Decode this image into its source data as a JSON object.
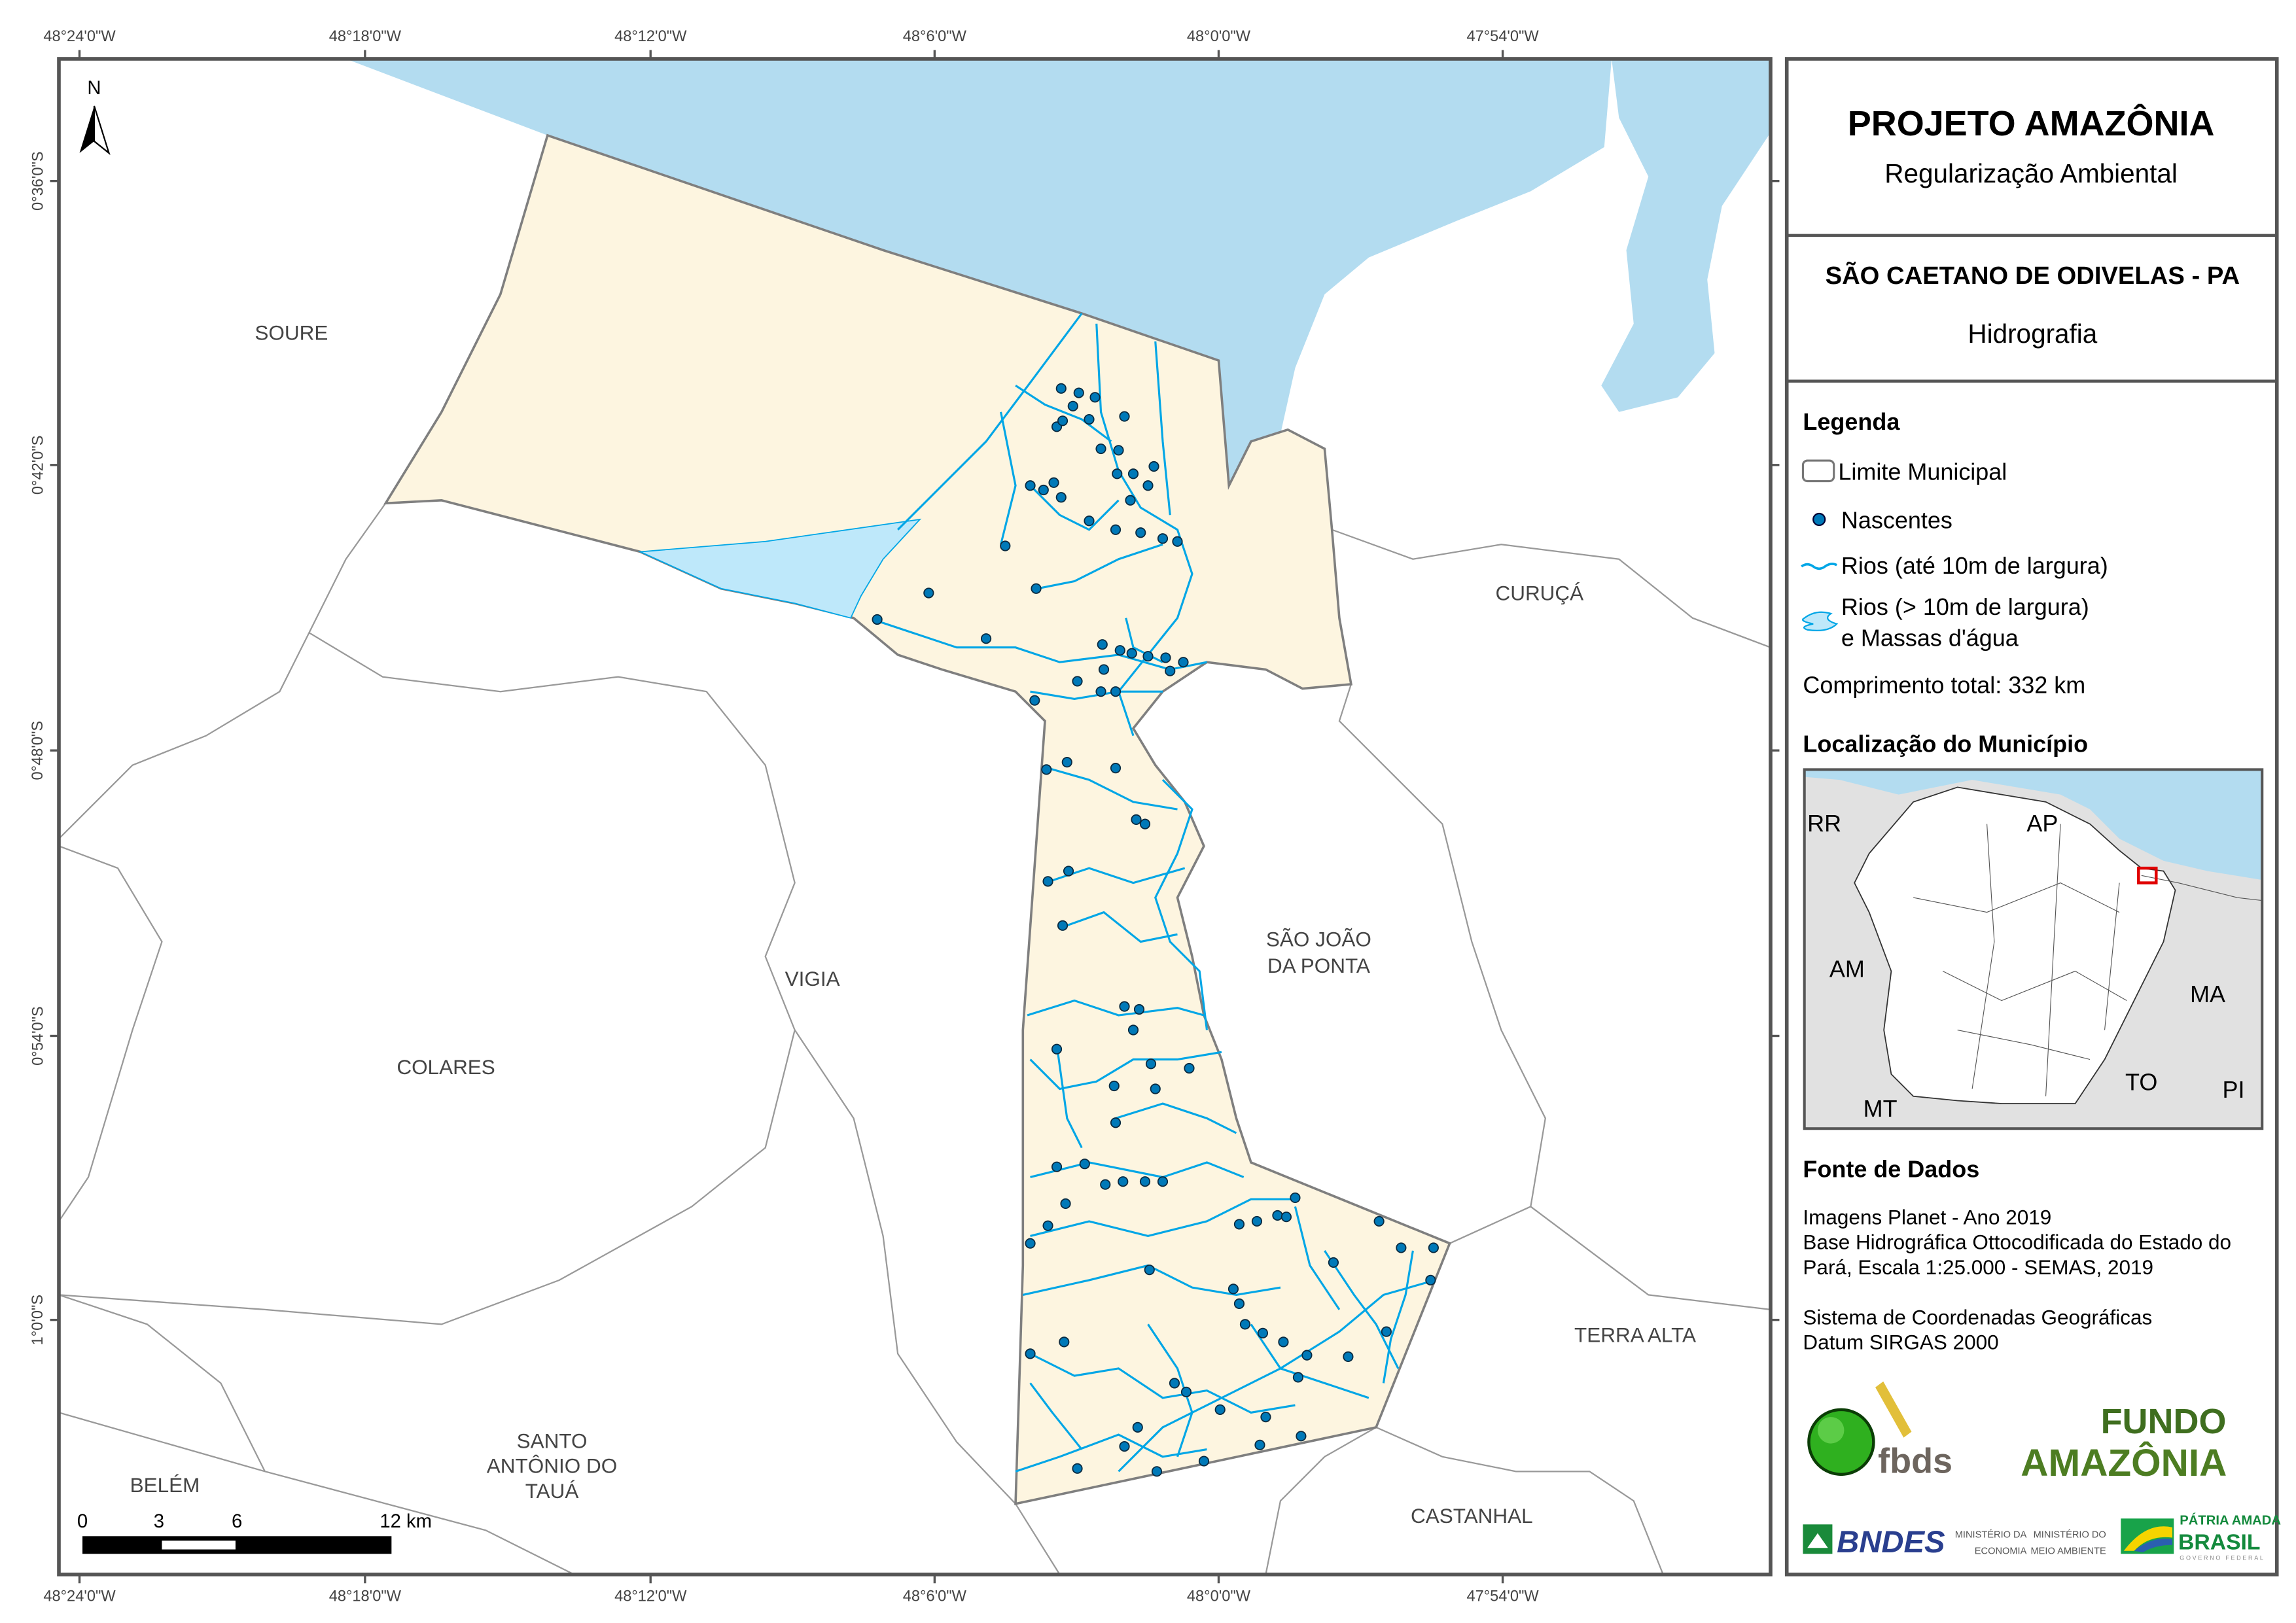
{
  "graticule": {
    "top": [
      "48°24'0\"W",
      "48°18'0\"W",
      "48°12'0\"W",
      "48°6'0\"W",
      "48°0'0\"W",
      "47°54'0\"W"
    ],
    "bottom": [
      "48°24'0\"W",
      "48°18'0\"W",
      "48°12'0\"W",
      "48°6'0\"W",
      "48°0'0\"W",
      "47°54'0\"W"
    ],
    "left": [
      "0°36'0\"S",
      "0°42'0\"S",
      "0°48'0\"S",
      "0°54'0\"S",
      "1°0'0\"S"
    ]
  },
  "north_arrow": "N",
  "municipalities": {
    "soure": "SOURE",
    "curuca": "CURUÇÁ",
    "sao_joao_1": "SÃO JOÃO",
    "sao_joao_2": "DA PONTA",
    "vigia": "VIGIA",
    "colares": "COLARES",
    "santo_1": "SANTO",
    "santo_2": "ANTÔNIO DO",
    "santo_3": "TAUÁ",
    "belem": "BELÉM",
    "terra_alta": "TERRA ALTA",
    "castanhal": "CASTANHAL"
  },
  "scale_bar": {
    "labels": [
      "0",
      "3",
      "6",
      "12 km"
    ]
  },
  "panel": {
    "title": "PROJETO AMAZÔNIA",
    "subtitle": "Regularização Ambiental",
    "municipality": "SÃO CAETANO DE ODIVELAS - PA",
    "theme": "Hidrografia",
    "legend_title": "Legenda",
    "legend": [
      {
        "label": "Limite Municipal",
        "icon": "municipal-boundary-icon"
      },
      {
        "label": "Nascentes",
        "icon": "spring-point-icon"
      },
      {
        "label": "Rios (até 10m de largura)",
        "icon": "river-line-icon"
      },
      {
        "label_1": "Rios (> 10m de largura)",
        "label_2": "e Massas d'água",
        "icon": "water-body-icon"
      }
    ],
    "total_length_label": "Comprimento total:",
    "total_length_value": "332 km",
    "location_title": "Localização do Município",
    "inset_labels": [
      "RR",
      "AP",
      "AM",
      "MA",
      "TO",
      "PI",
      "MT"
    ],
    "sources_title": "Fonte de Dados",
    "sources": [
      "Imagens Planet - Ano 2019",
      "Base Hidrográfica Ottocodificada do Estado do",
      "Pará, Escala 1:25.000 - SEMAS, 2019",
      "Sistema de Coordenadas Geográficas",
      "Datum SIRGAS 2000"
    ],
    "logos": {
      "fbds": "fbds",
      "fundo_1": "FUNDO",
      "fundo_2": "AMAZÔNIA",
      "bndes": "BNDES",
      "min_eco_1": "MINISTÉRIO DA",
      "min_eco_2": "ECONOMIA",
      "min_ma_1": "MINISTÉRIO DO",
      "min_ma_2": "MEIO AMBIENTE",
      "gov_1": "PÁTRIA AMADA",
      "gov_2": "BRASIL",
      "gov_3": "GOVERNO FEDERAL"
    }
  },
  "colors": {
    "water": "#b3dcf0",
    "water_inner": "#bee8fa",
    "municipality_fill": "#fdf5e0",
    "river": "#00a6e6",
    "spring": "#0079b8",
    "boundary": "#7f7f7f",
    "inset_bg": "#e1e1e1",
    "highlight": "#e00000"
  }
}
